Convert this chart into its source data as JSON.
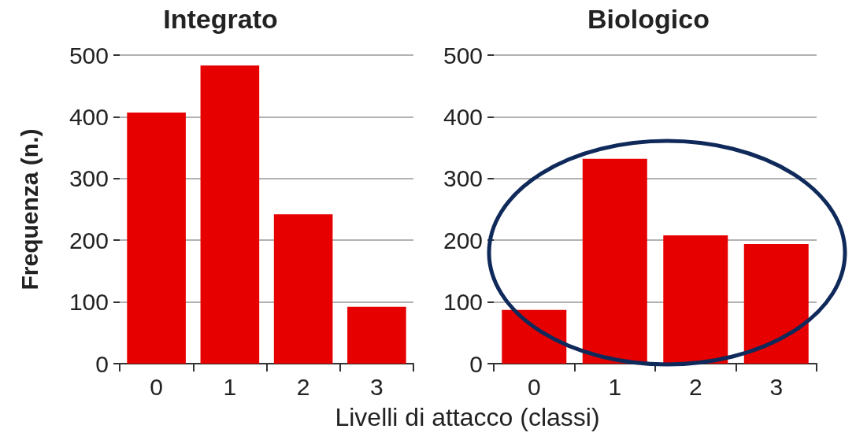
{
  "chart_data": [
    {
      "type": "bar",
      "title": "Integrato",
      "ylabel": "Frequenza (n.)",
      "xlabel": "Livelli di attacco (classi)",
      "categories": [
        "0",
        "1",
        "2",
        "3"
      ],
      "values": [
        407,
        483,
        242,
        92
      ],
      "color": "#e60000",
      "ylim": [
        0,
        500
      ],
      "yticks": [
        0,
        100,
        200,
        300,
        400,
        500
      ],
      "grid": "y"
    },
    {
      "type": "bar",
      "title": "Biologico",
      "categories": [
        "0",
        "1",
        "2",
        "3"
      ],
      "values": [
        87,
        332,
        208,
        194
      ],
      "color": "#e60000",
      "ylim": [
        0,
        500
      ],
      "yticks": [
        0,
        100,
        200,
        300,
        400,
        500
      ],
      "grid": "y"
    }
  ]
}
